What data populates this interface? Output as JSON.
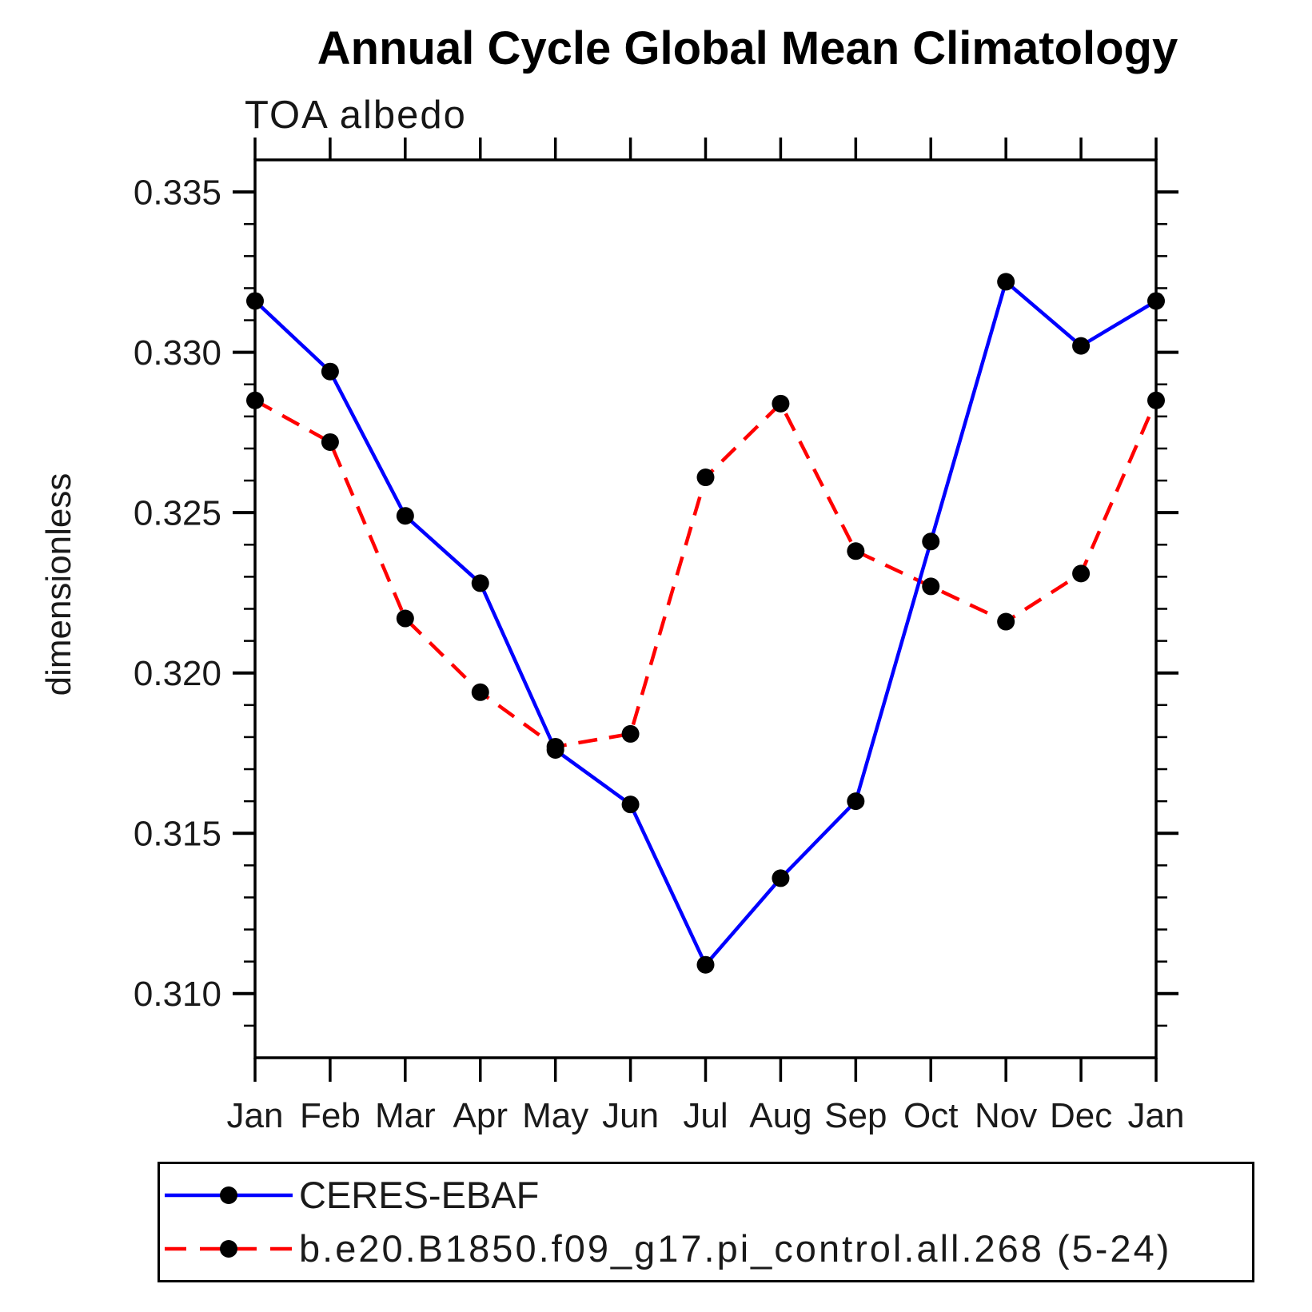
{
  "page": {
    "title": "Annual Cycle Global Mean Climatology",
    "subtitle": "TOA albedo",
    "ylabel": "dimensionless"
  },
  "colors": {
    "obs_line": "#0000ff",
    "model_line": "#ff0000",
    "marker": "#000000",
    "axis": "#000000",
    "background": "#ffffff"
  },
  "chart_data": {
    "type": "line",
    "title": "Annual Cycle Global Mean Climatology",
    "subtitle": "TOA albedo",
    "xlabel": "",
    "ylabel": "dimensionless",
    "x_categories": [
      "Jan",
      "Feb",
      "Mar",
      "Apr",
      "May",
      "Jun",
      "Jul",
      "Aug",
      "Sep",
      "Oct",
      "Nov",
      "Dec",
      "Jan"
    ],
    "ylim": [
      0.308,
      0.336
    ],
    "ytick_major": [
      0.31,
      0.315,
      0.32,
      0.325,
      0.33,
      0.335
    ],
    "ytick_major_labels": [
      "0.310",
      "0.315",
      "0.320",
      "0.325",
      "0.330",
      "0.335"
    ],
    "ytick_minor_step": 0.001,
    "grid": false,
    "legend_position": "bottom",
    "series": [
      {
        "name": "CERES-EBAF",
        "color": "#0000ff",
        "line_style": "solid",
        "marker": "black-circle",
        "values": [
          0.3316,
          0.3294,
          0.3249,
          0.3228,
          0.3176,
          0.3159,
          0.3109,
          0.3136,
          0.316,
          0.3241,
          0.3322,
          0.3302,
          0.3316
        ]
      },
      {
        "name": "b.e20.B1850.f09_g17.pi_control.all.268 (5-24)",
        "color": "#ff0000",
        "line_style": "dashed",
        "marker": "black-circle",
        "values": [
          0.3285,
          0.3272,
          0.3217,
          0.3194,
          0.3177,
          0.3181,
          0.3261,
          0.3284,
          0.3238,
          0.3227,
          0.3216,
          0.3231,
          0.3285
        ]
      }
    ]
  },
  "legend": {
    "entries": [
      {
        "label": "CERES-EBAF"
      },
      {
        "label": "b.e20.B1850.f09_g17.pi_control.all.268 (5-24)"
      }
    ]
  }
}
